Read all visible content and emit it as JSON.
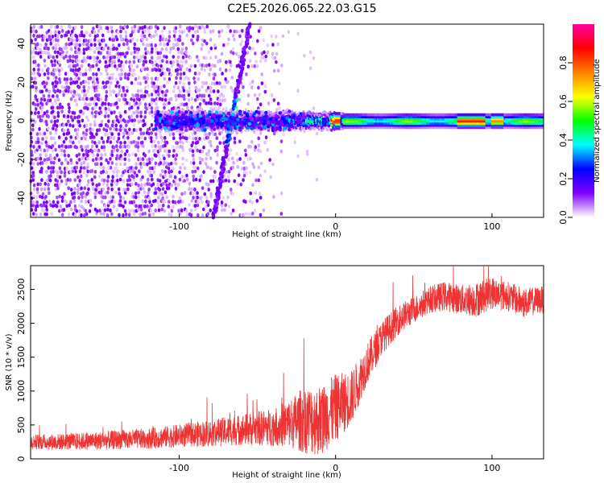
{
  "figure": {
    "title": "C2E5.2026.065.22.03.G15"
  },
  "chart_data": [
    {
      "type": "heatmap",
      "title": "C2E5.2026.065.22.03.G15",
      "xlabel": "Height of straight line (km)",
      "ylabel": "Frequency (Hz)",
      "xlim": [
        -195,
        133
      ],
      "ylim": [
        -50,
        50
      ],
      "xticks": [
        -100,
        0,
        100
      ],
      "yticks": [
        -40,
        -20,
        0,
        20,
        40
      ],
      "colorbar": {
        "label": "Normalized spectral amplitude",
        "range": [
          0,
          1
        ],
        "ticks": [
          0.0,
          0.2,
          0.4,
          0.6,
          0.8
        ],
        "colormap": [
          "#ffffff",
          "#8000ff",
          "#0000ff",
          "#00ffff",
          "#00ff00",
          "#ffff00",
          "#ff8000",
          "#ff0000",
          "#ff00a0"
        ]
      },
      "features": {
        "main_line": {
          "frequency": 0,
          "x_range": [
            -115,
            133
          ],
          "amplitude_peak": 0.85
        },
        "sweep_line": {
          "x_range": [
            -78,
            -55
          ],
          "frequency_range": [
            -50,
            50
          ]
        },
        "noise_region": {
          "x_range": [
            -195,
            -30
          ],
          "density": "high"
        }
      },
      "grid": false
    },
    {
      "type": "line",
      "xlabel": "Height of straight line (km)",
      "ylabel": "SNR (10 * v/v)",
      "xlim": [
        -195,
        133
      ],
      "ylim": [
        0,
        2850
      ],
      "xticks": [
        -100,
        0,
        100
      ],
      "yticks": [
        0,
        500,
        1000,
        1500,
        2000,
        2500
      ],
      "color": "#ee3333",
      "envelope": {
        "x": [
          -195,
          -180,
          -160,
          -140,
          -120,
          -100,
          -80,
          -60,
          -40,
          -30,
          -20,
          -10,
          0,
          10,
          20,
          30,
          40,
          50,
          60,
          70,
          80,
          90,
          100,
          110,
          120,
          133
        ],
        "mean": [
          250,
          250,
          260,
          280,
          300,
          340,
          380,
          430,
          470,
          520,
          580,
          560,
          750,
          900,
          1400,
          1800,
          2050,
          2200,
          2350,
          2400,
          2350,
          2350,
          2450,
          2400,
          2300,
          2350
        ],
        "spread": [
          110,
          120,
          130,
          140,
          150,
          170,
          200,
          230,
          280,
          350,
          500,
          520,
          500,
          400,
          300,
          250,
          220,
          200,
          200,
          220,
          220,
          260,
          240,
          220,
          220,
          200
        ]
      },
      "grid": false
    }
  ]
}
